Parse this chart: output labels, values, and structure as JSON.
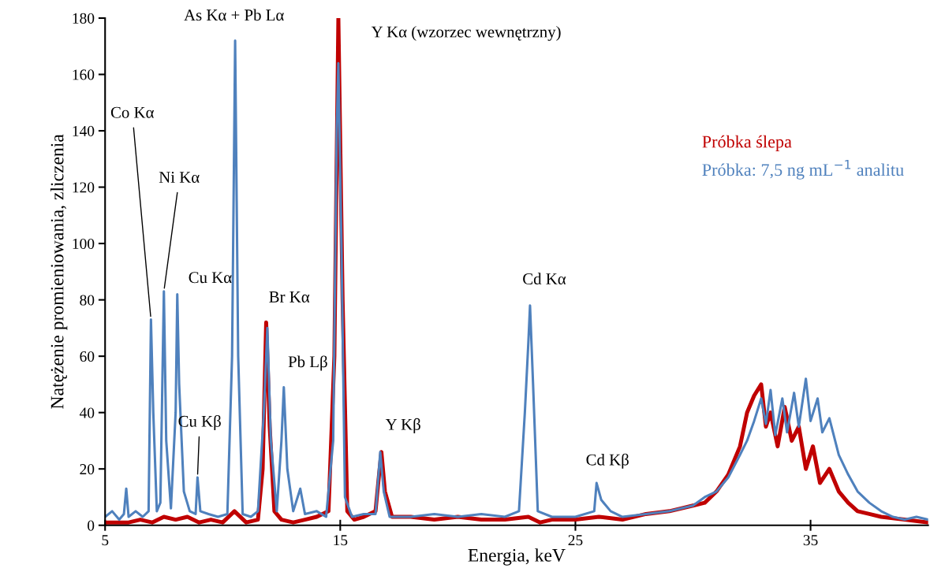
{
  "chart_data": {
    "type": "line",
    "xlabel": "Energia, keV",
    "ylabel": "Natężenie promieniowania, zliczenia",
    "xlim": [
      5,
      40
    ],
    "xticks": [
      5,
      15,
      25,
      35
    ],
    "ylim": [
      0,
      180
    ],
    "yticks": [
      0,
      20,
      40,
      60,
      80,
      100,
      120,
      140,
      160,
      180
    ],
    "grid": false,
    "legend": "top right",
    "marker": "none",
    "line_style": "solid",
    "series": [
      {
        "name": "Próbka ślepa",
        "color": "#c00000",
        "x": [
          5,
          6,
          6.5,
          7,
          7.5,
          8,
          8.5,
          9,
          9.5,
          10,
          10.5,
          11,
          11.5,
          11.7,
          11.85,
          12.0,
          12.2,
          12.5,
          13,
          13.5,
          14,
          14.5,
          14.75,
          14.92,
          15.1,
          15.3,
          15.6,
          16,
          16.5,
          16.65,
          16.75,
          16.9,
          17.2,
          18,
          19,
          20,
          21,
          22,
          23,
          23.5,
          24,
          25,
          26,
          27,
          28,
          29,
          30,
          30.5,
          31,
          31.5,
          32,
          32.3,
          32.6,
          32.9,
          33.1,
          33.3,
          33.6,
          33.9,
          34.2,
          34.5,
          34.8,
          35.1,
          35.4,
          35.8,
          36.2,
          36.6,
          37,
          37.5,
          38,
          39,
          40
        ],
        "values": [
          1,
          1,
          2,
          1,
          3,
          2,
          3,
          1,
          2,
          1,
          5,
          1,
          2,
          20,
          72,
          35,
          5,
          2,
          1,
          2,
          3,
          5,
          60,
          180,
          80,
          5,
          2,
          3,
          5,
          18,
          26,
          12,
          3,
          3,
          2,
          3,
          2,
          2,
          3,
          1,
          2,
          2,
          3,
          2,
          4,
          5,
          7,
          8,
          12,
          18,
          28,
          40,
          46,
          50,
          35,
          40,
          28,
          42,
          30,
          35,
          20,
          28,
          15,
          20,
          12,
          8,
          5,
          4,
          3,
          2,
          1
        ]
      },
      {
        "name": "Próbka: 7,5 ng mL$^{−1}$ analitu",
        "color": "#4f81bd",
        "x": [
          5,
          5.3,
          5.6,
          5.8,
          5.9,
          6.0,
          6.3,
          6.6,
          6.85,
          6.95,
          7.05,
          7.2,
          7.35,
          7.5,
          7.6,
          7.8,
          8.0,
          8.07,
          8.15,
          8.35,
          8.6,
          8.85,
          8.93,
          9.05,
          9.4,
          9.8,
          10.2,
          10.4,
          10.53,
          10.66,
          10.85,
          11.2,
          11.5,
          11.75,
          11.9,
          12.05,
          12.3,
          12.5,
          12.6,
          12.75,
          13.0,
          13.3,
          13.5,
          14.0,
          14.4,
          14.7,
          14.85,
          14.92,
          15.05,
          15.2,
          15.5,
          16.0,
          16.5,
          16.6,
          16.7,
          16.85,
          17.1,
          18,
          19,
          20,
          21,
          22,
          22.6,
          22.85,
          23.0,
          23.07,
          23.2,
          23.4,
          24,
          25,
          25.8,
          25.9,
          26.1,
          26.5,
          27,
          28,
          29,
          30,
          30.5,
          31,
          31.5,
          32,
          32.3,
          32.6,
          32.9,
          33.1,
          33.3,
          33.5,
          33.8,
          34.0,
          34.3,
          34.5,
          34.8,
          35.0,
          35.3,
          35.5,
          35.8,
          36.2,
          36.6,
          37,
          37.5,
          38,
          38.5,
          39,
          39.5,
          40
        ],
        "values": [
          3,
          5,
          2,
          4,
          13,
          3,
          5,
          3,
          5,
          73,
          40,
          5,
          8,
          83,
          30,
          6,
          40,
          82,
          50,
          12,
          5,
          4,
          17,
          5,
          4,
          3,
          4,
          60,
          172,
          60,
          4,
          3,
          5,
          40,
          70,
          30,
          5,
          30,
          49,
          20,
          5,
          13,
          4,
          5,
          3,
          30,
          140,
          164,
          100,
          10,
          3,
          4,
          4,
          15,
          26,
          12,
          3,
          3,
          4,
          3,
          4,
          3,
          5,
          40,
          65,
          78,
          50,
          5,
          3,
          3,
          5,
          15,
          9,
          5,
          3,
          4,
          5,
          7,
          10,
          12,
          17,
          25,
          30,
          37,
          45,
          36,
          48,
          32,
          45,
          33,
          47,
          35,
          52,
          37,
          45,
          33,
          38,
          25,
          18,
          12,
          8,
          5,
          3,
          2,
          3,
          2
        ]
      }
    ],
    "annotations": [
      {
        "text": "As Kα + Pb Lα",
        "x": 10.53,
        "y": 172
      },
      {
        "text": "Y Kα (wzorzec wewnętrzny)",
        "x": 14.92,
        "y": 180
      },
      {
        "text": "Co Kα",
        "x": 6.95,
        "y": 73
      },
      {
        "text": "Ni Kα",
        "x": 7.5,
        "y": 83
      },
      {
        "text": "Cu Kα",
        "x": 8.07,
        "y": 82
      },
      {
        "text": "Cu Kβ",
        "x": 8.93,
        "y": 17
      },
      {
        "text": "Br Kα",
        "x": 11.9,
        "y": 72
      },
      {
        "text": "Pb Lβ",
        "x": 12.6,
        "y": 49
      },
      {
        "text": "Y Kβ",
        "x": 16.7,
        "y": 26
      },
      {
        "text": "Cd Kα",
        "x": 23.07,
        "y": 78
      },
      {
        "text": "Cd Kβ",
        "x": 25.9,
        "y": 15
      }
    ]
  }
}
